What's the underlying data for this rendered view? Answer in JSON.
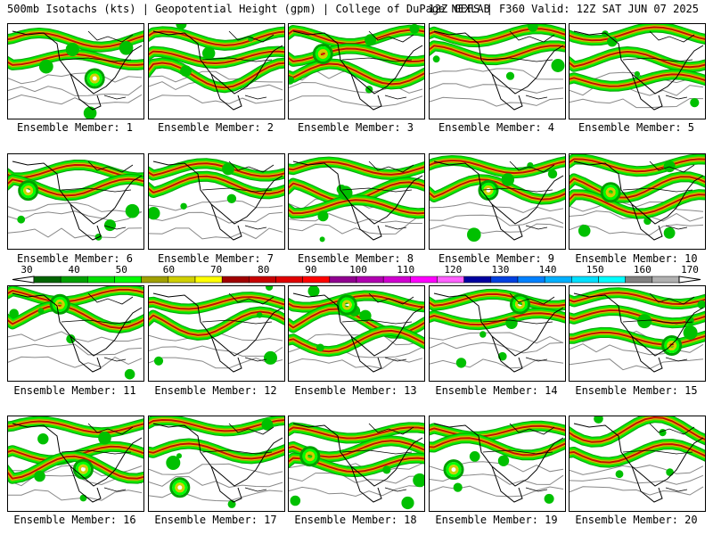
{
  "header": {
    "left_text": "500mb Isotachs (kts) | Geopotential Height (gpm) | College of DuPage NEXLAB",
    "right_text": "12Z GEFS | F360 Valid: 12Z SAT JUN 07 2025"
  },
  "colorbar": {
    "labels": [
      "30",
      "40",
      "50",
      "60",
      "70",
      "80",
      "90",
      "100",
      "110",
      "120",
      "130",
      "140",
      "150",
      "160",
      "170"
    ],
    "colors": [
      "#006400",
      "#00a000",
      "#00e000",
      "#00ff00",
      "#a0a000",
      "#d0d000",
      "#ffff00",
      "#a00000",
      "#c80000",
      "#e00000",
      "#ff0000",
      "#900090",
      "#b000b0",
      "#d000d0",
      "#ff00ff",
      "#ff60ff",
      "#0000a0",
      "#0040e0",
      "#0080ff",
      "#00b0ff",
      "#00e0ff",
      "#00ffff",
      "#808080",
      "#b0b0b0"
    ],
    "contour_color": "#888888",
    "jet_colors": [
      "#00a000",
      "#00e000",
      "#00ff00",
      "#a0a000",
      "#d0d000",
      "#c80000"
    ]
  },
  "members": [
    {
      "caption": "Ensemble Member: 1"
    },
    {
      "caption": "Ensemble Member: 2"
    },
    {
      "caption": "Ensemble Member: 3"
    },
    {
      "caption": "Ensemble Member: 4"
    },
    {
      "caption": "Ensemble Member: 5"
    },
    {
      "caption": "Ensemble Member: 6"
    },
    {
      "caption": "Ensemble Member: 7"
    },
    {
      "caption": "Ensemble Member: 8"
    },
    {
      "caption": "Ensemble Member: 9"
    },
    {
      "caption": "Ensemble Member: 10"
    },
    {
      "caption": "Ensemble Member: 11"
    },
    {
      "caption": "Ensemble Member: 12"
    },
    {
      "caption": "Ensemble Member: 13"
    },
    {
      "caption": "Ensemble Member: 14"
    },
    {
      "caption": "Ensemble Member: 15"
    },
    {
      "caption": "Ensemble Member: 16"
    },
    {
      "caption": "Ensemble Member: 17"
    },
    {
      "caption": "Ensemble Member: 18"
    },
    {
      "caption": "Ensemble Member: 19"
    },
    {
      "caption": "Ensemble Member: 20"
    }
  ]
}
